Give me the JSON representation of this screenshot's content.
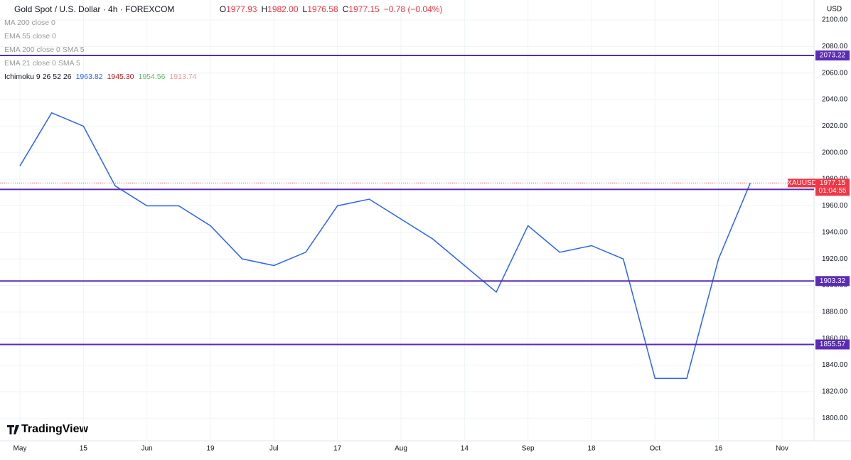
{
  "header": {
    "symbol": "Gold Spot / U.S. Dollar · 4h · FOREXCOM",
    "ohlc": [
      {
        "key": "O",
        "value": "1977.93"
      },
      {
        "key": "H",
        "value": "1982.00"
      },
      {
        "key": "L",
        "value": "1976.58"
      },
      {
        "key": "C",
        "value": "1977.15"
      }
    ],
    "change": "−0.78 (−0.04%)",
    "currency": "USD",
    "logo": "TradingView"
  },
  "indicators": [
    "MA 200 close 0",
    "EMA 55 close 0",
    "EMA 200 close 0 SMA 5",
    "EMA 21 close 0 SMA 5"
  ],
  "ichimoku": {
    "name": "Ichimoku 9 26 52 26",
    "values": [
      {
        "text": "1963.82",
        "color": "#2962ff"
      },
      {
        "text": "1945.30",
        "color": "#b71c1c"
      },
      {
        "text": "1954.56",
        "color": "#66bb6a"
      },
      {
        "text": "1913.74",
        "color": "#ef9a9a"
      }
    ]
  },
  "chart_data": {
    "type": "line",
    "categories": [
      "May",
      null,
      "15",
      null,
      "Jun",
      null,
      "19",
      null,
      "Jul",
      null,
      "17",
      null,
      "Aug",
      null,
      "14",
      null,
      "Sep",
      null,
      "18",
      null,
      "Oct",
      null,
      "16",
      null,
      "Nov"
    ],
    "series": [
      {
        "name": "XAUUSD",
        "color": "#2962ff",
        "values": [
          1990,
          2030,
          2020,
          1975,
          1960,
          1960,
          1945,
          1920,
          1915,
          1925,
          1960,
          1965,
          1950,
          1935,
          1915,
          1895,
          1945,
          1925,
          1930,
          1920,
          1830,
          1830,
          1920,
          1977.15,
          null
        ]
      }
    ],
    "ylim": [
      1783,
      2115
    ],
    "yticks": [
      {
        "value": 1800,
        "label": "1800.00"
      },
      {
        "value": 1820,
        "label": "1820.00"
      },
      {
        "value": 1840,
        "label": "1840.00"
      },
      {
        "value": 1860,
        "label": "1860.00"
      },
      {
        "value": 1880,
        "label": "1880.00"
      },
      {
        "value": 1900,
        "label": "1900.00"
      },
      {
        "value": 1920,
        "label": "1920.00"
      },
      {
        "value": 1940,
        "label": "1940.00"
      },
      {
        "value": 1960,
        "label": "1960.00"
      },
      {
        "value": 1980,
        "label": "1980.00"
      },
      {
        "value": 2000,
        "label": "2000.00"
      },
      {
        "value": 2020,
        "label": "2020.00"
      },
      {
        "value": 2040,
        "label": "2040.00"
      },
      {
        "value": 2060,
        "label": "2060.00"
      },
      {
        "value": 2080,
        "label": "2080.00"
      },
      {
        "value": 2100,
        "label": "2100.00"
      }
    ],
    "levels": [
      2073.22,
      1972.34,
      1903.32,
      1855.57
    ],
    "level_color": "#5b2bb5",
    "last_price": {
      "symbol": "XAUUSD",
      "value": 1977.15,
      "countdown": "01:04:55",
      "color": "#f23645"
    },
    "grid": true
  }
}
